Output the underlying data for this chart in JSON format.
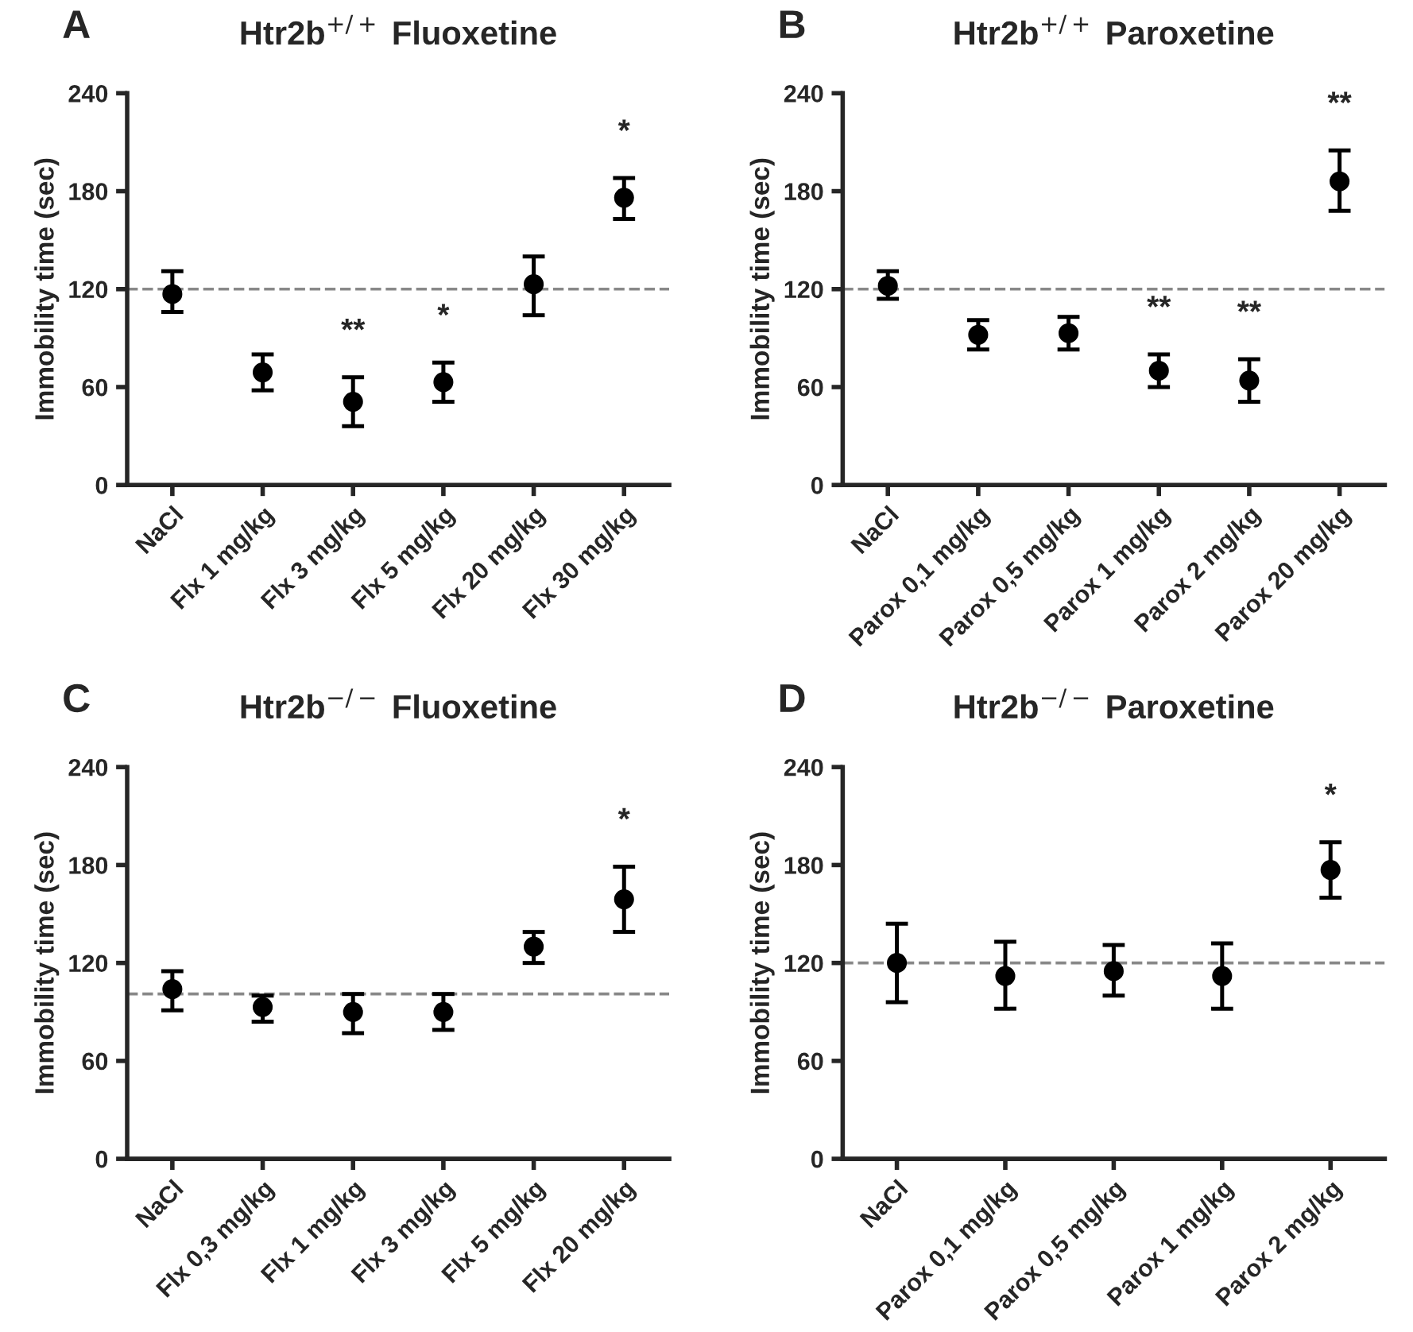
{
  "chart_data": [
    {
      "type": "scatter",
      "title": "Htr2b$^{+/+}$ Fluoxetine",
      "ylabel": "Immobility time (sec)",
      "categories": [
        "NaCl",
        "Flx 1 mg/kg",
        "Flx 3 mg/kg",
        "Flx 5 mg/kg",
        "Flx 20 mg/kg",
        "Flx 30 mg/kg"
      ],
      "series": [
        {
          "color": "#000000",
          "values": [
            117,
            69,
            51,
            63,
            123,
            176
          ],
          "value_labels": [
            null,
            null,
            "**",
            "*",
            null,
            "*"
          ],
          "errors": [
            [
              106,
              131
            ],
            [
              58,
              80
            ],
            [
              36,
              66
            ],
            [
              51,
              75
            ],
            [
              104,
              140
            ],
            [
              163,
              188
            ]
          ]
        }
      ],
      "ylim": [
        0,
        240
      ],
      "yticks": [
        0,
        60,
        120,
        180,
        240
      ],
      "marker": "circle",
      "grid": false,
      "ref_lines": [
        {
          "axis": "y",
          "value": 120,
          "color": "#888888",
          "line_style": "dashed"
        }
      ],
      "annotations": [
        "A"
      ]
    },
    {
      "type": "scatter",
      "title": "Htr2b$^{+/+}$ Paroxetine",
      "ylabel": "Immobility time (sec)",
      "categories": [
        "NaCl",
        "Parox 0,1 mg/kg",
        "Parox 0,5 mg/kg",
        "Parox 1 mg/kg",
        "Parox 2 mg/kg",
        "Parox 20 mg/kg"
      ],
      "series": [
        {
          "color": "#000000",
          "values": [
            122,
            92,
            93,
            70,
            64,
            186
          ],
          "value_labels": [
            null,
            null,
            null,
            "**",
            "**",
            "**"
          ],
          "errors": [
            [
              114,
              131
            ],
            [
              83,
              101
            ],
            [
              83,
              103
            ],
            [
              60,
              80
            ],
            [
              51,
              77
            ],
            [
              168,
              205
            ]
          ]
        }
      ],
      "ylim": [
        0,
        240
      ],
      "yticks": [
        0,
        60,
        120,
        180,
        240
      ],
      "marker": "circle",
      "grid": false,
      "ref_lines": [
        {
          "axis": "y",
          "value": 120,
          "color": "#888888",
          "line_style": "dashed"
        }
      ],
      "annotations": [
        "B"
      ]
    },
    {
      "type": "scatter",
      "title": "Htr2b$^{−/−}$ Fluoxetine",
      "ylabel": "Immobility time (sec)",
      "categories": [
        "NaCl",
        "Flx 0,3 mg/kg",
        "Flx 1 mg/kg",
        "Flx 3 mg/kg",
        "Flx 5 mg/kg",
        "Flx 20 mg/kg"
      ],
      "series": [
        {
          "color": "#000000",
          "values": [
            104,
            93,
            90,
            90,
            130,
            159
          ],
          "value_labels": [
            null,
            null,
            null,
            null,
            null,
            "*"
          ],
          "errors": [
            [
              91,
              115
            ],
            [
              84,
              100
            ],
            [
              77,
              101
            ],
            [
              79,
              101
            ],
            [
              120,
              139
            ],
            [
              139,
              179
            ]
          ]
        }
      ],
      "ylim": [
        0,
        240
      ],
      "yticks": [
        0,
        60,
        120,
        180,
        240
      ],
      "marker": "circle",
      "grid": false,
      "ref_lines": [
        {
          "axis": "y",
          "value": 101,
          "color": "#888888",
          "line_style": "dashed"
        }
      ],
      "annotations": [
        "C"
      ]
    },
    {
      "type": "scatter",
      "title": "Htr2b$^{−/−}$ Paroxetine",
      "ylabel": "Immobility time (sec)",
      "categories": [
        "NaCl",
        "Parox 0,1 mg/kg",
        "Parox 0,5 mg/kg",
        "Parox 1 mg/kg",
        "Parox 2 mg/kg"
      ],
      "series": [
        {
          "color": "#000000",
          "values": [
            120,
            112,
            115,
            112,
            177
          ],
          "value_labels": [
            null,
            null,
            null,
            null,
            "*"
          ],
          "errors": [
            [
              96,
              144
            ],
            [
              92,
              133
            ],
            [
              100,
              131
            ],
            [
              92,
              132
            ],
            [
              160,
              194
            ]
          ]
        }
      ],
      "ylim": [
        0,
        240
      ],
      "yticks": [
        0,
        60,
        120,
        180,
        240
      ],
      "marker": "circle",
      "grid": false,
      "ref_lines": [
        {
          "axis": "y",
          "value": 120,
          "color": "#888888",
          "line_style": "dashed"
        }
      ],
      "annotations": [
        "D"
      ]
    }
  ]
}
